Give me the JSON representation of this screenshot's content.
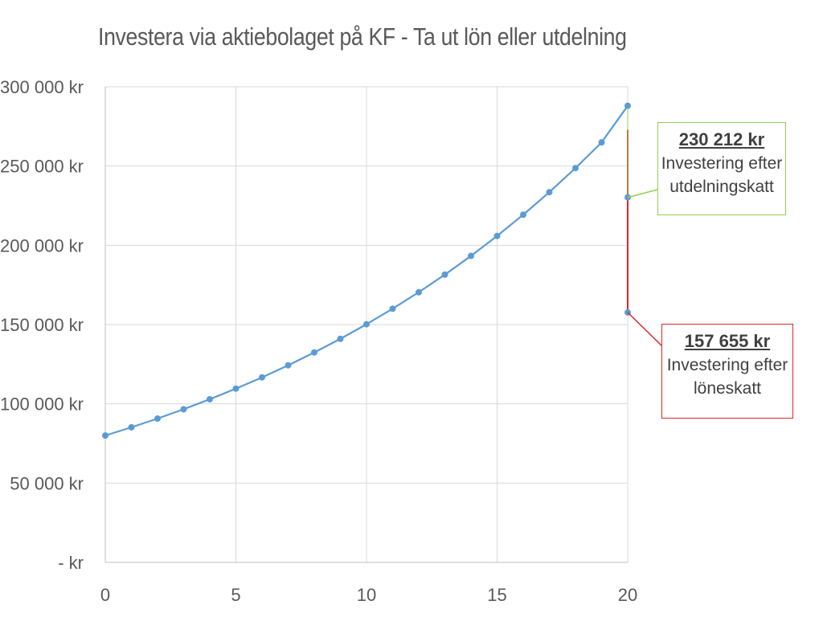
{
  "chart_data": {
    "type": "line",
    "title": "Investera via aktiebolaget på KF - Ta ut lön eller utdelning",
    "xlabel": "",
    "ylabel": "",
    "xlim": [
      0,
      20
    ],
    "ylim": [
      0,
      300000
    ],
    "x_ticks": [
      0,
      5,
      10,
      15,
      20
    ],
    "x_tick_labels": [
      "0",
      "5",
      "10",
      "15",
      "20"
    ],
    "y_ticks": [
      0,
      50000,
      100000,
      150000,
      200000,
      250000,
      300000
    ],
    "y_tick_labels": [
      "-   kr",
      "50 000 kr",
      "100 000 kr",
      "150 000 kr",
      "200 000 kr",
      "250 000 kr",
      "300 000 kr"
    ],
    "grid": true,
    "series": [
      {
        "color": "#5b9bd5",
        "x": [
          0,
          1,
          2,
          3,
          4,
          5,
          6,
          7,
          8,
          9,
          10,
          11,
          12,
          13,
          14,
          15,
          16,
          17,
          18,
          19,
          20
        ],
        "y": [
          80000,
          85200,
          90700,
          96600,
          102900,
          109600,
          116700,
          124300,
          132400,
          141000,
          150200,
          160000,
          170400,
          181500,
          193300,
          205900,
          219300,
          233500,
          248700,
          264900,
          288000
        ]
      }
    ],
    "annotations": [
      {
        "x": 20,
        "y": 230212,
        "value": "230 212 kr",
        "text": "Investering efter\nutdelningskatt",
        "color": "#92d050",
        "marker_color": "#5b9bd5"
      },
      {
        "x": 20,
        "y": 157655,
        "value": "157 655 kr",
        "text": "Investering efter\nlöneskatt",
        "color": "#e0242b",
        "marker_color": "#5b9bd5"
      }
    ],
    "drop_line_color": "#e0242b",
    "grid_color": "#d9d9d9",
    "axis_color": "#bfbfbf"
  }
}
